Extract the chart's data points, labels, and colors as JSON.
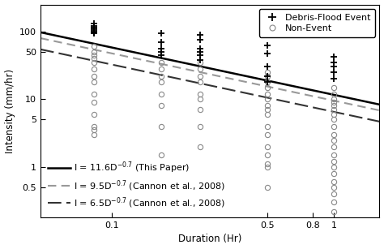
{
  "xlabel": "Duration (Hr)",
  "ylabel": "Intensity (mm/hr)",
  "xlim": [
    0.048,
    1.6
  ],
  "ylim": [
    0.18,
    250
  ],
  "line1": {
    "coef": 11.6,
    "exp": -0.7,
    "color": "#000000",
    "style": "-",
    "lw": 1.8
  },
  "line2": {
    "coef": 9.5,
    "exp": -0.7,
    "color": "#999999",
    "style": "--",
    "lw": 1.5
  },
  "line3": {
    "coef": 6.5,
    "exp": -0.7,
    "color": "#333333",
    "style": "--",
    "lw": 1.5
  },
  "debris_x": [
    0.0833,
    0.0833,
    0.0833,
    0.0833,
    0.0833,
    0.0833,
    0.0833,
    0.0833,
    0.167,
    0.167,
    0.167,
    0.167,
    0.167,
    0.25,
    0.25,
    0.25,
    0.25,
    0.25,
    0.25,
    0.5,
    0.5,
    0.5,
    0.5,
    0.5,
    1.0,
    1.0,
    1.0,
    1.0,
    1.0
  ],
  "debris_y": [
    130,
    120,
    115,
    110,
    105,
    100,
    98,
    95,
    95,
    70,
    55,
    50,
    45,
    90,
    75,
    55,
    50,
    45,
    38,
    62,
    47,
    30,
    22,
    18,
    42,
    35,
    30,
    25,
    20
  ],
  "nonevent_x": [
    0.0833,
    0.0833,
    0.0833,
    0.0833,
    0.0833,
    0.0833,
    0.0833,
    0.0833,
    0.0833,
    0.0833,
    0.0833,
    0.0833,
    0.0833,
    0.0833,
    0.167,
    0.167,
    0.167,
    0.167,
    0.167,
    0.167,
    0.167,
    0.167,
    0.25,
    0.25,
    0.25,
    0.25,
    0.25,
    0.25,
    0.25,
    0.25,
    0.25,
    0.5,
    0.5,
    0.5,
    0.5,
    0.5,
    0.5,
    0.5,
    0.5,
    0.5,
    0.5,
    0.5,
    0.5,
    0.5,
    0.5,
    0.5,
    0.5,
    1.0,
    1.0,
    1.0,
    1.0,
    1.0,
    1.0,
    1.0,
    1.0,
    1.0,
    1.0,
    1.0,
    1.0,
    1.0,
    1.0,
    1.0,
    1.0,
    1.0,
    1.0,
    1.0,
    1.0,
    1.0
  ],
  "nonevent_y": [
    60,
    50,
    45,
    40,
    35,
    28,
    22,
    18,
    12,
    9,
    6,
    4,
    3.5,
    3,
    35,
    28,
    22,
    18,
    12,
    8,
    4,
    1.5,
    35,
    28,
    22,
    18,
    12,
    10,
    7,
    4,
    2,
    25,
    22,
    18,
    15,
    12,
    10,
    8,
    7,
    6,
    4,
    3,
    2,
    1.5,
    1.1,
    1.0,
    0.5,
    15,
    12,
    10,
    9,
    8,
    7,
    6,
    5,
    4,
    3,
    2.5,
    2,
    1.5,
    1.2,
    1.0,
    0.8,
    0.6,
    0.5,
    0.4,
    0.3,
    0.22
  ],
  "xticks": [
    0.1,
    0.5,
    0.8,
    1.0
  ],
  "xticklabels": [
    "0.1",
    "0.5",
    "0.8",
    "1"
  ],
  "yticks": [
    0.5,
    1,
    5,
    10,
    50,
    100
  ],
  "yticklabels": [
    "0.5",
    "1",
    "5",
    "10",
    "50",
    "100"
  ],
  "leg1_label1": "Debris-Flood Event",
  "leg1_label2": "Non-Event",
  "leg2_label1": "I = 11.6D",
  "leg2_label1_sup": "-0.7",
  "leg2_label1_rest": " (This Paper)",
  "leg2_label2": "I = 9.5D",
  "leg2_label2_sup": "-0.7",
  "leg2_label2_rest": " (Cannon et al., 2008)",
  "leg2_label3": "I = 6.5D",
  "leg2_label3_sup": "-0.7",
  "leg2_label3_rest": " (Cannon et al., 2008)",
  "bg_color": "#ffffff",
  "text_color": "#000000",
  "fontsize": 8.5,
  "tick_fontsize": 8
}
